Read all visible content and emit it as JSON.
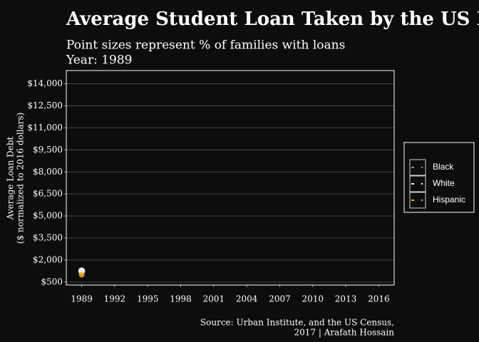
{
  "chart_data": {
    "type": "scatter",
    "title": "Average Student Loan Taken by the US Families",
    "subtitle": [
      "Point sizes represent % of families with loans",
      "Year: 1989"
    ],
    "y_label": [
      "Average Loan Debt",
      "($ normalized to 2016 dollars)"
    ],
    "caption": [
      "Source: Urban Institute, and the US Census,",
      "2017 | Arafath Hossain"
    ],
    "x": [
      1989
    ],
    "series": [
      {
        "name": "Black",
        "color": "#8c8c8c",
        "values": [
          1300
        ],
        "sizes": [
          10
        ]
      },
      {
        "name": "White",
        "color": "#ffffff",
        "values": [
          1250
        ],
        "sizes": [
          12
        ]
      },
      {
        "name": "Hispanic",
        "color": "#f2b134",
        "values": [
          1000
        ],
        "sizes": [
          8
        ]
      }
    ],
    "xlim": [
      1987.6,
      2017.4
    ],
    "xticks": [
      1989,
      1992,
      1995,
      1998,
      2001,
      2004,
      2007,
      2010,
      2013,
      2016
    ],
    "ylim": [
      300,
      14900
    ],
    "yticks": [
      {
        "value": 500,
        "label": "$500"
      },
      {
        "value": 2000,
        "label": "$2,000"
      },
      {
        "value": 3500,
        "label": "$3,500"
      },
      {
        "value": 5000,
        "label": "$5,000"
      },
      {
        "value": 6500,
        "label": "$6,500"
      },
      {
        "value": 8000,
        "label": "$8,000"
      },
      {
        "value": 9500,
        "label": "$9,500"
      },
      {
        "value": 11000,
        "label": "$11,000"
      },
      {
        "value": 12500,
        "label": "$12,500"
      },
      {
        "value": 14000,
        "label": "$14,000"
      }
    ],
    "grid": true
  }
}
